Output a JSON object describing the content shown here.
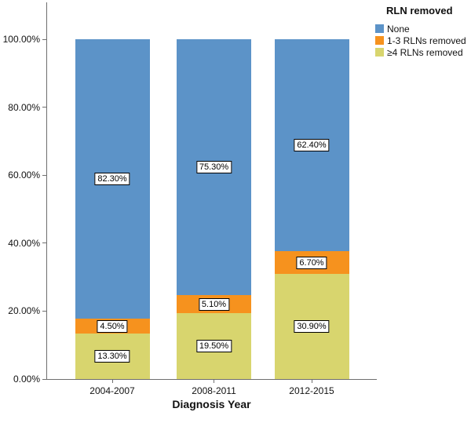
{
  "chart_data": {
    "type": "bar",
    "stacked": true,
    "title": "",
    "xlabel": "Diagnosis Year",
    "ylabel": "",
    "legend_title": "RLN removed",
    "legend_position": "top-right",
    "grid": false,
    "bar_label_style": "boxed-white",
    "categories": [
      "2004-2007",
      "2008-2011",
      "2012-2015"
    ],
    "series": [
      {
        "name": "None",
        "color": "#5c93c8",
        "values": [
          82.3,
          75.3,
          62.4
        ],
        "labels": [
          "82.30%",
          "75.30%",
          "62.40%"
        ]
      },
      {
        "name": "1-3 RLNs removed",
        "color": "#f6921e",
        "values": [
          4.5,
          5.1,
          6.7
        ],
        "labels": [
          "4.50%",
          "5.10%",
          "6.70%"
        ]
      },
      {
        "name": "≥4 RLNs removed",
        "color": "#d8d56e",
        "values": [
          13.3,
          19.5,
          30.9
        ],
        "labels": [
          "13.30%",
          "19.50%",
          "30.90%"
        ]
      }
    ],
    "ylim": [
      0,
      100
    ],
    "y_ticks": [
      {
        "label": "0.00%",
        "value": 0
      },
      {
        "label": "20.00%",
        "value": 20
      },
      {
        "label": "40.00%",
        "value": 40
      },
      {
        "label": "60.00%",
        "value": 60
      },
      {
        "label": "80.00%",
        "value": 80
      },
      {
        "label": "100.00%",
        "value": 100
      }
    ]
  }
}
